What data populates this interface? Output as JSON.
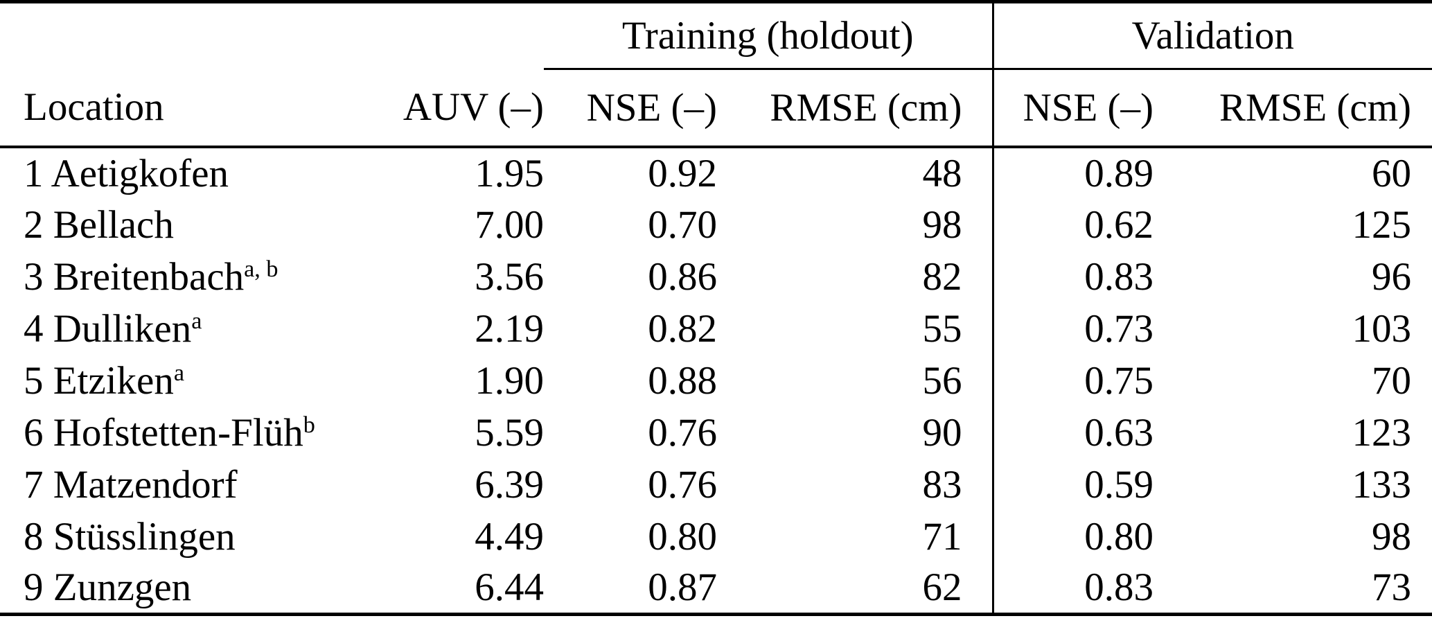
{
  "table": {
    "group_header": {
      "training": "Training (holdout)",
      "validation": "Validation"
    },
    "columns": {
      "location": "Location",
      "auv": "AUV (–)",
      "nse_train": "NSE (–)",
      "rmse_train": "RMSE (cm)",
      "nse_val": "NSE (–)",
      "rmse_val": "RMSE (cm)"
    },
    "rows": [
      {
        "name": "1 Aetigkofen",
        "sup": "",
        "auv": "1.95",
        "nse_t": "0.92",
        "rmse_t": "48",
        "nse_v": "0.89",
        "rmse_v": "60"
      },
      {
        "name": "2 Bellach",
        "sup": "",
        "auv": "7.00",
        "nse_t": "0.70",
        "rmse_t": "98",
        "nse_v": "0.62",
        "rmse_v": "125"
      },
      {
        "name": "3 Breitenbach",
        "sup": "a, b",
        "auv": "3.56",
        "nse_t": "0.86",
        "rmse_t": "82",
        "nse_v": "0.83",
        "rmse_v": "96"
      },
      {
        "name": "4 Dulliken",
        "sup": "a",
        "auv": "2.19",
        "nse_t": "0.82",
        "rmse_t": "55",
        "nse_v": "0.73",
        "rmse_v": "103"
      },
      {
        "name": "5 Etziken",
        "sup": "a",
        "auv": "1.90",
        "nse_t": "0.88",
        "rmse_t": "56",
        "nse_v": "0.75",
        "rmse_v": "70"
      },
      {
        "name": "6 Hofstetten-Flüh",
        "sup": "b",
        "auv": "5.59",
        "nse_t": "0.76",
        "rmse_t": "90",
        "nse_v": "0.63",
        "rmse_v": "123"
      },
      {
        "name": "7 Matzendorf",
        "sup": "",
        "auv": "6.39",
        "nse_t": "0.76",
        "rmse_t": "83",
        "nse_v": "0.59",
        "rmse_v": "133"
      },
      {
        "name": "8 Stüsslingen",
        "sup": "",
        "auv": "4.49",
        "nse_t": "0.80",
        "rmse_t": "71",
        "nse_v": "0.80",
        "rmse_v": "98"
      },
      {
        "name": "9 Zunzgen",
        "sup": "",
        "auv": "6.44",
        "nse_t": "0.87",
        "rmse_t": "62",
        "nse_v": "0.83",
        "rmse_v": "73"
      }
    ],
    "colors": {
      "text": "#000000",
      "background": "#ffffff",
      "rule": "#000000"
    }
  }
}
